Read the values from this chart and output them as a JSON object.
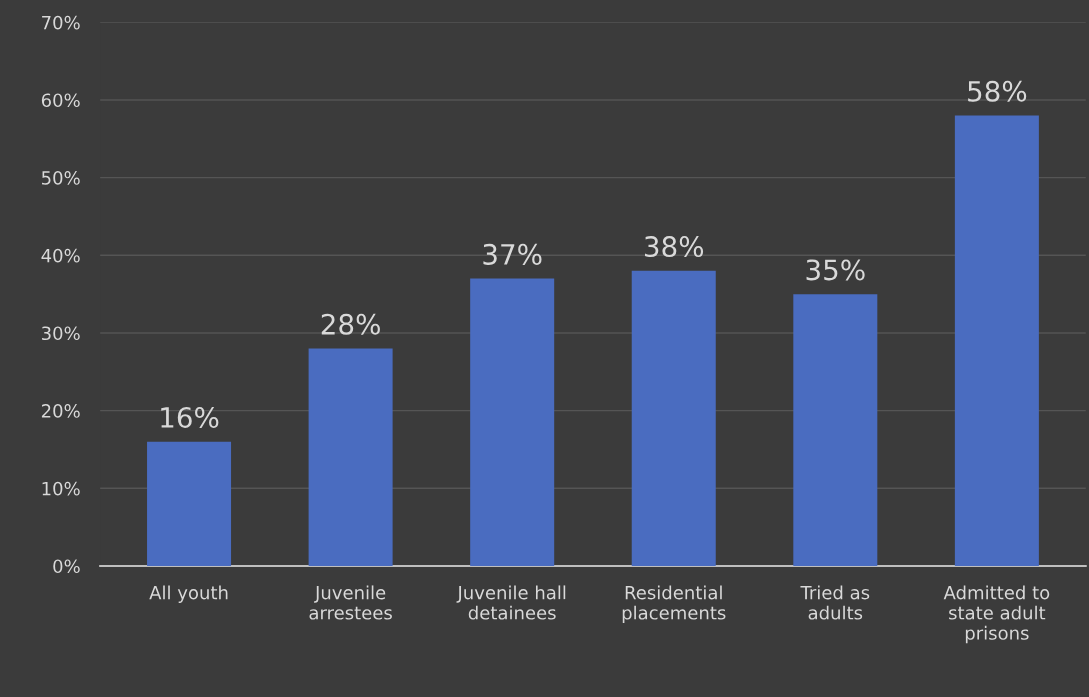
{
  "chart_data": {
    "type": "bar",
    "categories": [
      "All youth",
      "Juvenile arrestees",
      "Juvenile hall detainees",
      "Residential placements",
      "Tried as adults",
      "Admitted to state adult prisons"
    ],
    "values": [
      16,
      28,
      37,
      38,
      35,
      58
    ],
    "value_labels": [
      "16%",
      "28%",
      "37%",
      "38%",
      "35%",
      "58%"
    ],
    "color": "#4a6cc0",
    "ylim": [
      0,
      70
    ],
    "yticks": [
      {
        "value": 0,
        "label": "0%"
      },
      {
        "value": 10,
        "label": "10%"
      },
      {
        "value": 20,
        "label": "20%"
      },
      {
        "value": 30,
        "label": "30%"
      },
      {
        "value": 40,
        "label": "40%"
      },
      {
        "value": 50,
        "label": "50%"
      },
      {
        "value": 60,
        "label": "60%"
      },
      {
        "value": 70,
        "label": "70%"
      }
    ],
    "grid": "y",
    "legend": false
  }
}
